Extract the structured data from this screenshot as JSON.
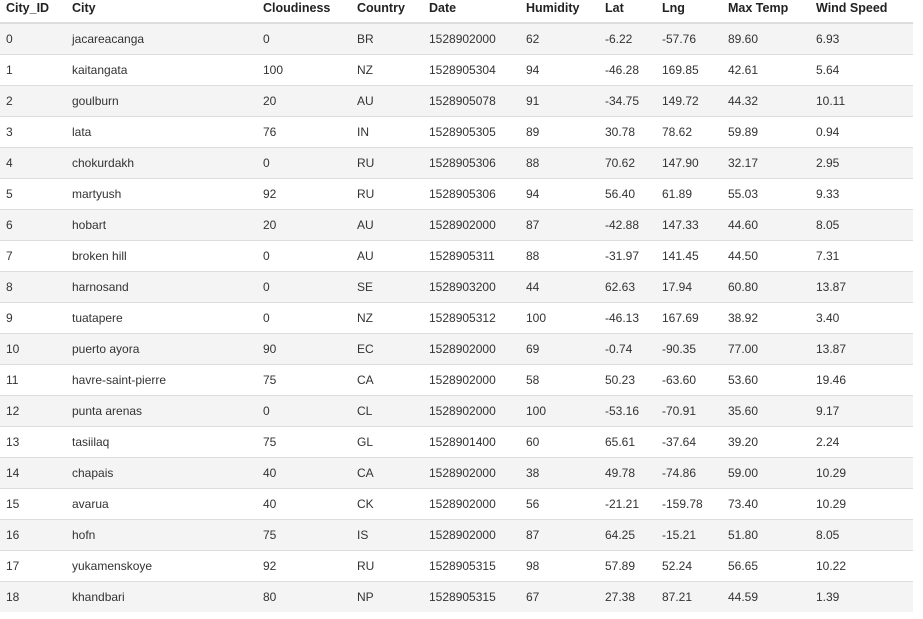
{
  "table": {
    "columns": [
      "City_ID",
      "City",
      "Cloudiness",
      "Country",
      "Date",
      "Humidity",
      "Lat",
      "Lng",
      "Max Temp",
      "Wind Speed"
    ],
    "rows": [
      [
        "0",
        "jacareacanga",
        "0",
        "BR",
        "1528902000",
        "62",
        "-6.22",
        "-57.76",
        "89.60",
        "6.93"
      ],
      [
        "1",
        "kaitangata",
        "100",
        "NZ",
        "1528905304",
        "94",
        "-46.28",
        "169.85",
        "42.61",
        "5.64"
      ],
      [
        "2",
        "goulburn",
        "20",
        "AU",
        "1528905078",
        "91",
        "-34.75",
        "149.72",
        "44.32",
        "10.11"
      ],
      [
        "3",
        "lata",
        "76",
        "IN",
        "1528905305",
        "89",
        "30.78",
        "78.62",
        "59.89",
        "0.94"
      ],
      [
        "4",
        "chokurdakh",
        "0",
        "RU",
        "1528905306",
        "88",
        "70.62",
        "147.90",
        "32.17",
        "2.95"
      ],
      [
        "5",
        "martyush",
        "92",
        "RU",
        "1528905306",
        "94",
        "56.40",
        "61.89",
        "55.03",
        "9.33"
      ],
      [
        "6",
        "hobart",
        "20",
        "AU",
        "1528902000",
        "87",
        "-42.88",
        "147.33",
        "44.60",
        "8.05"
      ],
      [
        "7",
        "broken hill",
        "0",
        "AU",
        "1528905311",
        "88",
        "-31.97",
        "141.45",
        "44.50",
        "7.31"
      ],
      [
        "8",
        "harnosand",
        "0",
        "SE",
        "1528903200",
        "44",
        "62.63",
        "17.94",
        "60.80",
        "13.87"
      ],
      [
        "9",
        "tuatapere",
        "0",
        "NZ",
        "1528905312",
        "100",
        "-46.13",
        "167.69",
        "38.92",
        "3.40"
      ],
      [
        "10",
        "puerto ayora",
        "90",
        "EC",
        "1528902000",
        "69",
        "-0.74",
        "-90.35",
        "77.00",
        "13.87"
      ],
      [
        "11",
        "havre-saint-pierre",
        "75",
        "CA",
        "1528902000",
        "58",
        "50.23",
        "-63.60",
        "53.60",
        "19.46"
      ],
      [
        "12",
        "punta arenas",
        "0",
        "CL",
        "1528902000",
        "100",
        "-53.16",
        "-70.91",
        "35.60",
        "9.17"
      ],
      [
        "13",
        "tasiilaq",
        "75",
        "GL",
        "1528901400",
        "60",
        "65.61",
        "-37.64",
        "39.20",
        "2.24"
      ],
      [
        "14",
        "chapais",
        "40",
        "CA",
        "1528902000",
        "38",
        "49.78",
        "-74.86",
        "59.00",
        "10.29"
      ],
      [
        "15",
        "avarua",
        "40",
        "CK",
        "1528902000",
        "56",
        "-21.21",
        "-159.78",
        "73.40",
        "10.29"
      ],
      [
        "16",
        "hofn",
        "75",
        "IS",
        "1528902000",
        "87",
        "64.25",
        "-15.21",
        "51.80",
        "8.05"
      ],
      [
        "17",
        "yukamenskoye",
        "92",
        "RU",
        "1528905315",
        "98",
        "57.89",
        "52.24",
        "56.65",
        "10.22"
      ],
      [
        "18",
        "khandbari",
        "80",
        "NP",
        "1528905315",
        "67",
        "27.38",
        "87.21",
        "44.59",
        "1.39"
      ]
    ]
  }
}
